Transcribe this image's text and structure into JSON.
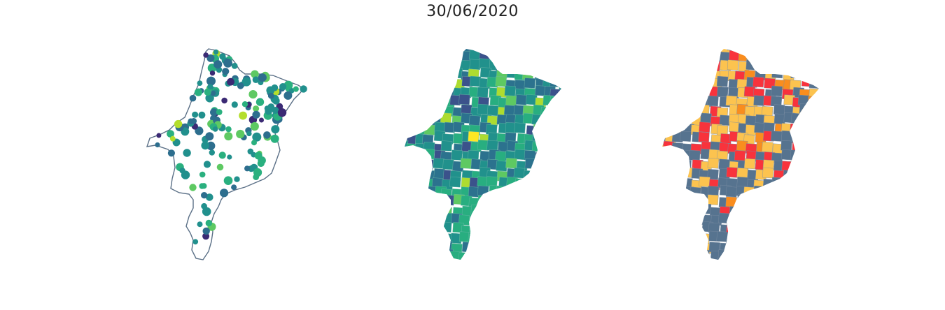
{
  "title": "30/06/2020",
  "maps": [
    {
      "kind": "points",
      "outline_color": "#5a6f86",
      "colors": [
        "#3b2a74",
        "#2d6e8e",
        "#21908d",
        "#2ab07f",
        "#5ec962",
        "#b4de2c"
      ]
    },
    {
      "kind": "choropleth",
      "colors": [
        "#3b528b",
        "#2c728e",
        "#21918c",
        "#28ae80",
        "#5ec962",
        "#addc30",
        "#fde725"
      ]
    },
    {
      "kind": "categorical",
      "colors": [
        "#56738f",
        "#fcc34f",
        "#f8333c",
        "#f98d1e"
      ]
    }
  ]
}
